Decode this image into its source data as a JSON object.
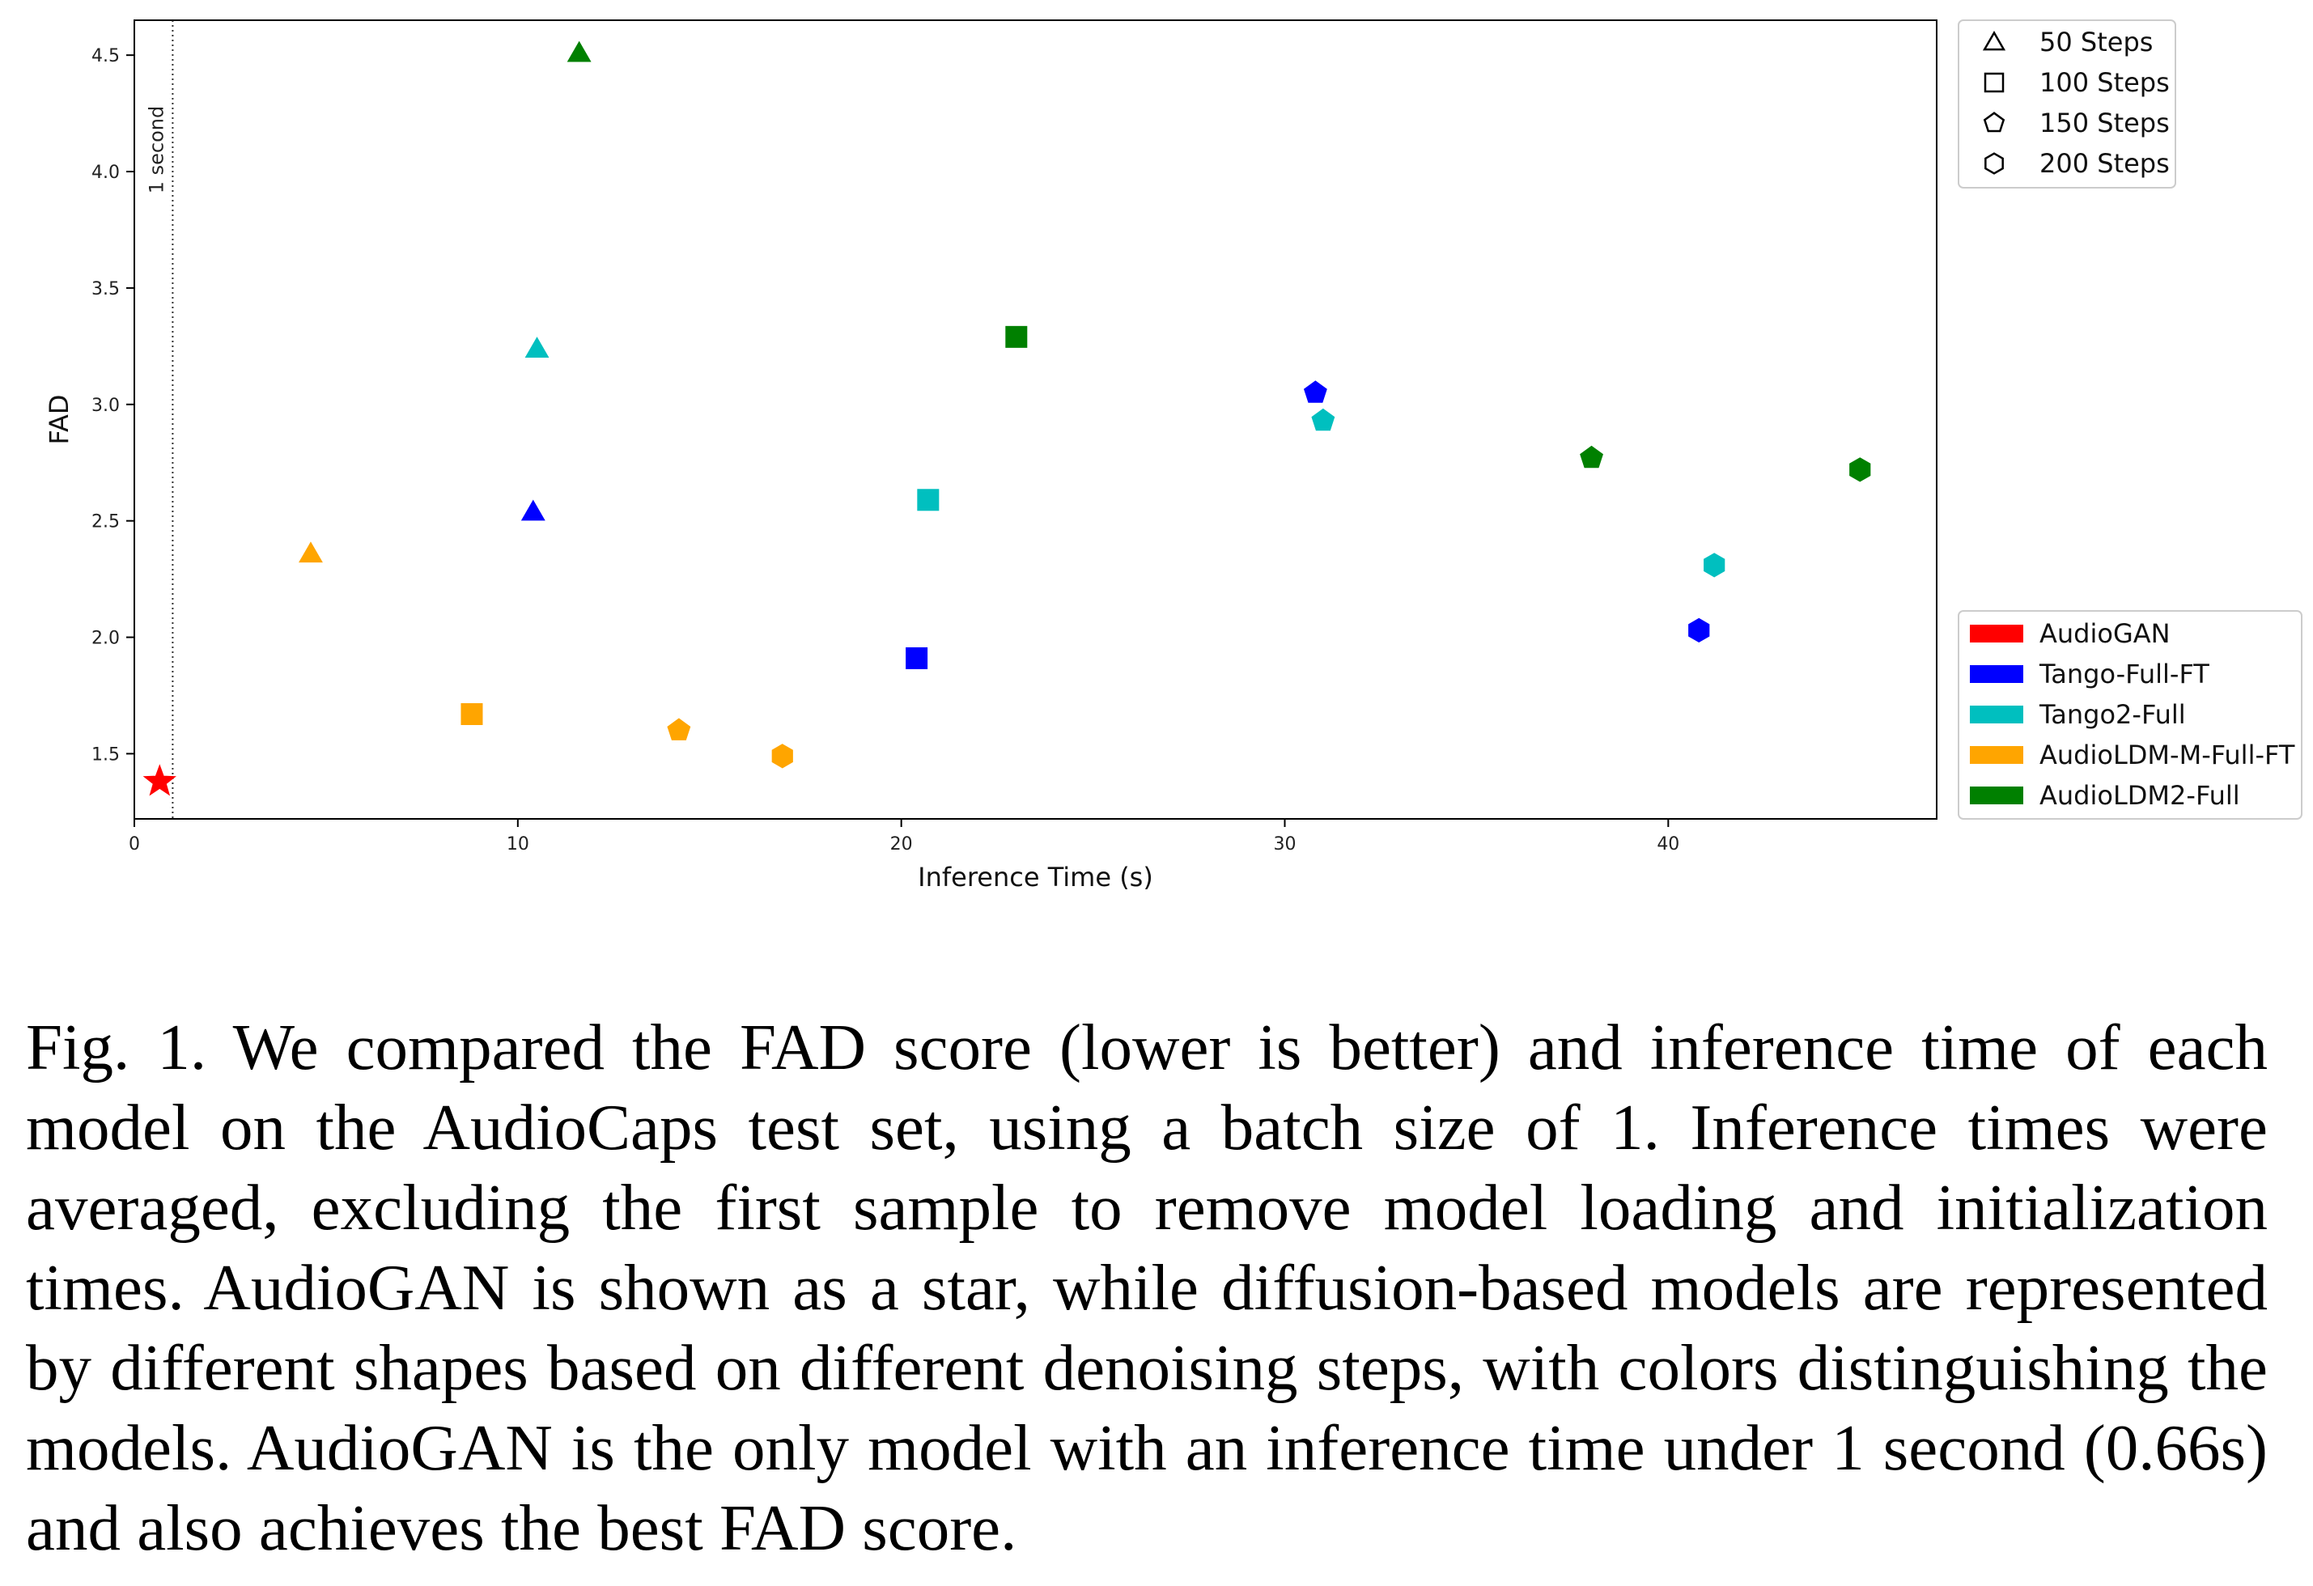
{
  "chart_data": {
    "type": "scatter",
    "xlabel": "Inference Time (s)",
    "ylabel": "FAD",
    "xlim": [
      0,
      47
    ],
    "ylim": [
      1.22,
      4.65
    ],
    "x_ticks": [
      0,
      10,
      20,
      30,
      40
    ],
    "y_ticks": [
      1.5,
      2.0,
      2.5,
      3.0,
      3.5,
      4.0,
      4.5
    ],
    "x_tick_labels": [
      "0",
      "10",
      "20",
      "30",
      "40"
    ],
    "y_tick_labels": [
      "1.5",
      "2.0",
      "2.5",
      "3.0",
      "3.5",
      "4.0",
      "4.5"
    ],
    "grid": false,
    "annotation": {
      "x": 1,
      "label": "1 second",
      "style": "dotted vertical line"
    },
    "shape_legend": {
      "placement": "top-right",
      "entries": [
        {
          "shape": "triangle",
          "label": "50 Steps"
        },
        {
          "shape": "square",
          "label": "100 Steps"
        },
        {
          "shape": "pentagon",
          "label": "150 Steps"
        },
        {
          "shape": "hexagon",
          "label": "200 Steps"
        }
      ]
    },
    "color_legend": {
      "placement": "right",
      "entries": [
        {
          "label": "AudioGAN",
          "color": "#ff0000"
        },
        {
          "label": "Tango-Full-FT",
          "color": "#0000ff"
        },
        {
          "label": "Tango2-Full",
          "color": "#00bfbf"
        },
        {
          "label": "AudioLDM-M-Full-FT",
          "color": "#ffa500"
        },
        {
          "label": "AudioLDM2-Full",
          "color": "#008000"
        }
      ]
    },
    "series": [
      {
        "name": "AudioGAN",
        "color": "#ff0000",
        "points": [
          {
            "x": 0.66,
            "y": 1.38,
            "shape": "star"
          }
        ]
      },
      {
        "name": "Tango-Full-FT",
        "color": "#0000ff",
        "points": [
          {
            "x": 10.4,
            "y": 2.54,
            "shape": "triangle"
          },
          {
            "x": 20.4,
            "y": 1.91,
            "shape": "square"
          },
          {
            "x": 30.8,
            "y": 3.05,
            "shape": "pentagon"
          },
          {
            "x": 40.8,
            "y": 2.03,
            "shape": "hexagon"
          }
        ]
      },
      {
        "name": "Tango2-Full",
        "color": "#00bfbf",
        "points": [
          {
            "x": 10.5,
            "y": 3.24,
            "shape": "triangle"
          },
          {
            "x": 20.7,
            "y": 2.59,
            "shape": "square"
          },
          {
            "x": 31.0,
            "y": 2.93,
            "shape": "pentagon"
          },
          {
            "x": 41.2,
            "y": 2.31,
            "shape": "hexagon"
          }
        ]
      },
      {
        "name": "AudioLDM-M-Full-FT",
        "color": "#ffa500",
        "points": [
          {
            "x": 4.6,
            "y": 2.36,
            "shape": "triangle"
          },
          {
            "x": 8.8,
            "y": 1.67,
            "shape": "square"
          },
          {
            "x": 14.2,
            "y": 1.6,
            "shape": "pentagon"
          },
          {
            "x": 16.9,
            "y": 1.49,
            "shape": "hexagon"
          }
        ]
      },
      {
        "name": "AudioLDM2-Full",
        "color": "#008000",
        "points": [
          {
            "x": 11.6,
            "y": 4.51,
            "shape": "triangle"
          },
          {
            "x": 23.0,
            "y": 3.29,
            "shape": "square"
          },
          {
            "x": 38.0,
            "y": 2.77,
            "shape": "pentagon"
          },
          {
            "x": 45.0,
            "y": 2.72,
            "shape": "hexagon"
          }
        ]
      }
    ]
  },
  "caption": {
    "text": "Fig. 1.  We compared the FAD score (lower is better) and inference time of each model on the AudioCaps test set, using a batch size of 1. Inference times were averaged, excluding the first sample to remove model loading and initialization times. AudioGAN is shown as a star, while diffusion-based models are represented by different shapes based on different denoising steps, with colors distinguishing the models. AudioGAN is the only model with an inference time under 1 second (0.66s) and also achieves the best FAD score."
  }
}
